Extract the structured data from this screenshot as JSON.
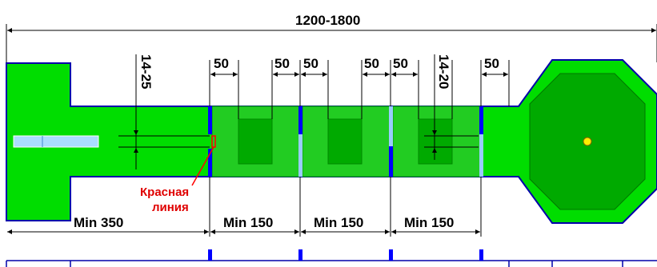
{
  "colors": {
    "field": "#00dd00",
    "field_dark": "#00aa00",
    "zone_light": "#22cc22",
    "outline": "#0000aa",
    "gate": "#0000ff",
    "gate_light": "#99ccff",
    "bar": "#aaddff",
    "dot": "#ffee00",
    "red_line": "#ff0000",
    "red_text": "#e00000"
  },
  "labels": {
    "total": "1200-1800",
    "gap_50": "50",
    "range_14_25": "14-25",
    "range_14_20": "14-20",
    "red_line": [
      "Красная",
      "линия"
    ],
    "min_350": "Min 350",
    "min_150": "Min 150"
  }
}
